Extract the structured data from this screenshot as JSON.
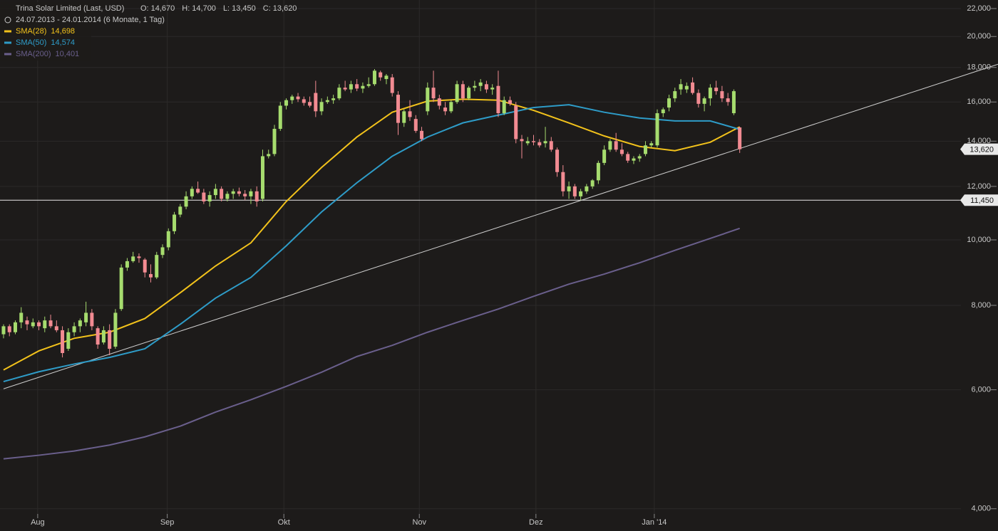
{
  "chart_data": {
    "type": "candlestick",
    "title": "Trina Solar Limited (Last, USD)",
    "ohlc_info": [
      {
        "label": "O:",
        "value": "14,670"
      },
      {
        "label": "H:",
        "value": "14,700"
      },
      {
        "label": "L:",
        "value": "13,450"
      },
      {
        "label": "C:",
        "value": "13,620"
      }
    ],
    "date_range": "24.07.2013 - 24.01.2014 (6 Monate, 1 Tag)",
    "log_scale": true,
    "grid": true,
    "xlim": [
      -0.6,
      162.2
    ],
    "ylim": [
      3930,
      22650
    ],
    "xticks": [
      {
        "value": 5.8,
        "label": "Aug"
      },
      {
        "value": 27.8,
        "label": "Sep"
      },
      {
        "value": 47.6,
        "label": "Okt"
      },
      {
        "value": 70.6,
        "label": "Nov"
      },
      {
        "value": 90.4,
        "label": "Dez"
      },
      {
        "value": 110.5,
        "label": "Jan '14"
      }
    ],
    "yticks": [
      {
        "value": 4000,
        "label": "4,000"
      },
      {
        "value": 6000,
        "label": "6,000"
      },
      {
        "value": 8000,
        "label": "8,000"
      },
      {
        "value": 10000,
        "label": "10,000"
      },
      {
        "value": 12000,
        "label": "12,000"
      },
      {
        "value": 14000,
        "label": "14,000"
      },
      {
        "value": 16000,
        "label": "16,000"
      },
      {
        "value": 18000,
        "label": "18,000"
      },
      {
        "value": 20000,
        "label": "20,000"
      },
      {
        "value": 22000,
        "label": "22,000"
      }
    ],
    "up_color": "#a6dc6e",
    "down_color": "#f28b92",
    "open": [
      7250,
      7450,
      7300,
      7550,
      7600,
      7450,
      7550,
      7400,
      7600,
      7450,
      7350,
      6900,
      7300,
      7450,
      7550,
      7800,
      7400,
      7050,
      7350,
      6950,
      7900,
      9100,
      9300,
      9450,
      9350,
      8900,
      8800,
      9500,
      9750,
      10300,
      10900,
      11200,
      11600,
      11900,
      11750,
      11400,
      11650,
      11900,
      11500,
      11700,
      11800,
      11700,
      11600,
      11800,
      11500,
      13300,
      13400,
      14600,
      15800,
      16100,
      16300,
      16150,
      16000,
      16500,
      15500,
      16000,
      16100,
      16200,
      16800,
      16700,
      17000,
      16750,
      16900,
      17000,
      17700,
      17300,
      17400,
      16400,
      14900,
      15500,
      15100,
      14500,
      15500,
      16800,
      16200,
      15700,
      15500,
      16000,
      17000,
      16200,
      16800,
      16900,
      17000,
      16700,
      16900,
      15400,
      16100,
      15800,
      14100,
      13900,
      14000,
      13950,
      13900,
      14000,
      13600,
      12600,
      11800,
      12000,
      11600,
      11800,
      12000,
      12250,
      13000,
      13600,
      14000,
      13600,
      13400,
      13100,
      13200,
      13400,
      13800,
      13800,
      15400,
      15700,
      16200,
      16700,
      16700,
      17100,
      16500,
      15900,
      16200,
      16800,
      16600,
      16200,
      15400,
      14670
    ],
    "high": [
      7500,
      7500,
      7600,
      7950,
      7700,
      7650,
      7600,
      7700,
      7750,
      7600,
      7450,
      7400,
      7550,
      7650,
      8100,
      7900,
      7450,
      7450,
      7500,
      7900,
      9200,
      9400,
      9600,
      9550,
      9400,
      9200,
      9600,
      9850,
      10400,
      11000,
      11300,
      11800,
      12000,
      12200,
      11900,
      11800,
      12100,
      12000,
      11800,
      11900,
      11950,
      11850,
      11900,
      12000,
      13600,
      13600,
      14800,
      16000,
      16200,
      16400,
      16500,
      16300,
      16300,
      17200,
      16200,
      16300,
      16400,
      17000,
      17200,
      17200,
      17300,
      17100,
      17400,
      17900,
      17800,
      17600,
      17600,
      16600,
      15600,
      16100,
      15300,
      14700,
      17100,
      17800,
      16400,
      16000,
      16100,
      17200,
      17200,
      16900,
      17200,
      17300,
      17200,
      17000,
      17800,
      16300,
      16300,
      16000,
      14300,
      14200,
      14300,
      14100,
      14700,
      14200,
      13700,
      12900,
      12200,
      12100,
      11900,
      12100,
      12300,
      13100,
      13800,
      14100,
      14400,
      13900,
      13500,
      13300,
      13400,
      14000,
      14000,
      15600,
      15700,
      16400,
      16800,
      17300,
      17100,
      17400,
      16700,
      16300,
      17000,
      17200,
      16900,
      16500,
      16700,
      14700
    ],
    "low": [
      7150,
      7200,
      7250,
      7400,
      7350,
      7400,
      7350,
      7300,
      7400,
      7300,
      6700,
      6850,
      7200,
      7300,
      7450,
      7350,
      6900,
      7000,
      6750,
      6900,
      7850,
      9000,
      9250,
      9250,
      8800,
      8650,
      8750,
      9400,
      9650,
      10200,
      10800,
      11100,
      11500,
      11700,
      11300,
      11200,
      11500,
      11400,
      11400,
      11500,
      11600,
      11450,
      11300,
      11200,
      11400,
      13200,
      13300,
      14500,
      15600,
      15900,
      16000,
      15800,
      15700,
      15200,
      15300,
      15900,
      15900,
      16100,
      16600,
      16500,
      16600,
      16500,
      16800,
      16900,
      17200,
      17000,
      16300,
      14300,
      14700,
      15000,
      14400,
      14000,
      15300,
      16000,
      15600,
      15300,
      15400,
      15900,
      16000,
      16100,
      16600,
      16600,
      16500,
      16400,
      15200,
      15300,
      15800,
      13900,
      13200,
      13800,
      13800,
      13700,
      13700,
      13500,
      12400,
      11600,
      11500,
      11500,
      11450,
      11700,
      11900,
      12100,
      12900,
      13500,
      13500,
      13300,
      13000,
      12950,
      13050,
      13300,
      13700,
      13700,
      15200,
      15500,
      16000,
      16400,
      16500,
      16400,
      15700,
      15500,
      15800,
      16400,
      16000,
      15800,
      15300,
      13450
    ],
    "close": [
      7450,
      7300,
      7550,
      7800,
      7500,
      7550,
      7450,
      7600,
      7450,
      7350,
      6800,
      7300,
      7450,
      7600,
      7800,
      7450,
      7000,
      7350,
      6900,
      7800,
      9100,
      9300,
      9450,
      9400,
      8950,
      8800,
      9500,
      9750,
      10300,
      10900,
      11200,
      11600,
      11900,
      11750,
      11400,
      11650,
      11900,
      11500,
      11700,
      11800,
      11700,
      11600,
      11800,
      11400,
      13300,
      13400,
      14600,
      15800,
      16100,
      16300,
      16150,
      15950,
      15800,
      15500,
      16000,
      16100,
      16200,
      16800,
      16700,
      17000,
      16750,
      16900,
      17000,
      17800,
      17400,
      17500,
      16500,
      14900,
      15500,
      15200,
      14500,
      14100,
      16800,
      16200,
      15800,
      15500,
      16000,
      17000,
      16200,
      16800,
      16900,
      17100,
      16700,
      16800,
      15400,
      16100,
      15900,
      14100,
      14000,
      14000,
      13950,
      13800,
      14000,
      13600,
      12600,
      11800,
      12000,
      11600,
      11800,
      12000,
      12250,
      13000,
      13600,
      14000,
      13600,
      13400,
      13100,
      13200,
      13300,
      13800,
      13900,
      15400,
      15600,
      16200,
      16600,
      17000,
      16900,
      16500,
      15900,
      16200,
      16800,
      16600,
      16200,
      16000,
      16600,
      13620
    ],
    "price_label": "13,620",
    "sma": [
      {
        "name": "SMA(28)",
        "legend_value": "14,698",
        "color": "#f2c21b",
        "x": [
          0,
          6,
          12,
          18,
          24,
          30,
          36,
          42,
          48,
          54,
          60,
          66,
          72,
          78,
          84,
          90,
          96,
          102,
          108,
          114,
          120,
          125
        ],
        "values": [
          6420,
          6850,
          7150,
          7300,
          7650,
          8350,
          9150,
          9900,
          11400,
          12800,
          14200,
          15450,
          16050,
          16150,
          16100,
          15550,
          14900,
          14250,
          13750,
          13550,
          13950,
          14698
        ]
      },
      {
        "name": "SMA(50)",
        "legend_value": "14,574",
        "color": "#2e9cc8",
        "x": [
          0,
          6,
          12,
          18,
          24,
          30,
          36,
          42,
          48,
          54,
          60,
          66,
          72,
          78,
          84,
          90,
          96,
          102,
          108,
          114,
          120,
          125
        ],
        "values": [
          6170,
          6380,
          6550,
          6700,
          6900,
          7500,
          8200,
          8800,
          9800,
          11000,
          12150,
          13300,
          14200,
          14900,
          15300,
          15700,
          15850,
          15450,
          15150,
          15000,
          15000,
          14574
        ]
      },
      {
        "name": "SMA(200)",
        "legend_value": "10,401",
        "color": "#6a5f8c",
        "x": [
          0,
          6,
          12,
          18,
          24,
          30,
          36,
          42,
          48,
          54,
          60,
          66,
          72,
          78,
          84,
          90,
          96,
          102,
          108,
          114,
          120,
          125
        ],
        "values": [
          4741,
          4800,
          4870,
          4970,
          5110,
          5300,
          5560,
          5800,
          6070,
          6370,
          6720,
          6980,
          7300,
          7600,
          7900,
          8250,
          8600,
          8900,
          9250,
          9650,
          10050,
          10401
        ]
      }
    ],
    "trendline": {
      "x": [
        0,
        168.9
      ],
      "values": [
        6020,
        18200
      ]
    },
    "hline": {
      "value": 11450,
      "label": "11,450"
    }
  }
}
